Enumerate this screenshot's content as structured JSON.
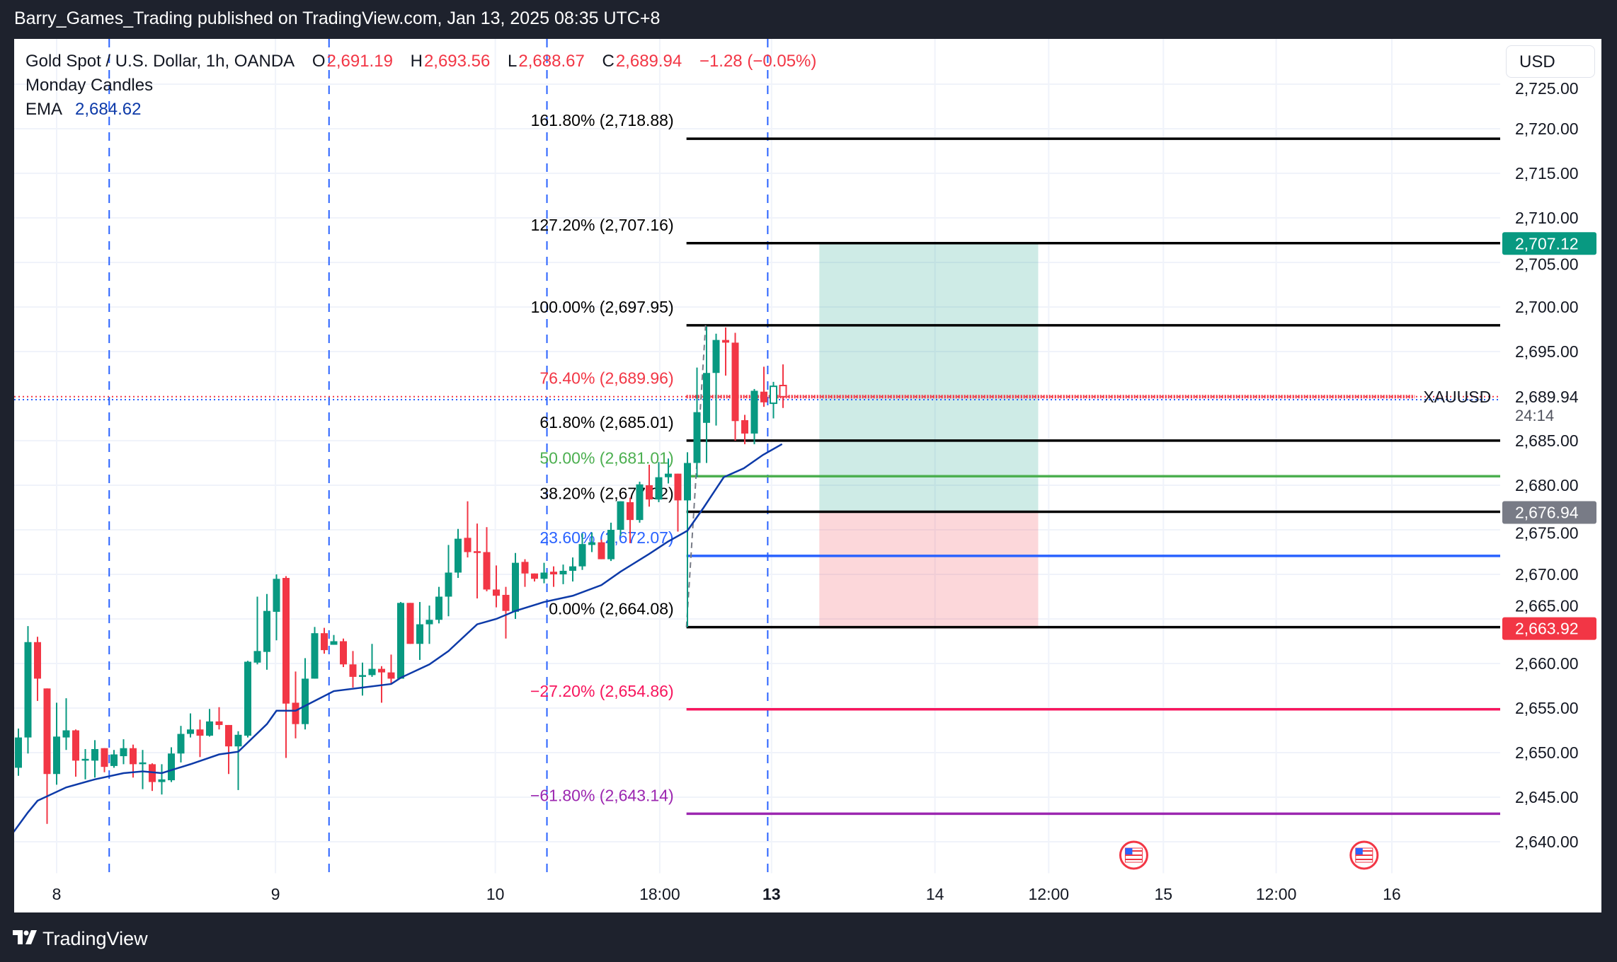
{
  "header": {
    "published": "Barry_Games_Trading published on TradingView.com, Jan 13, 2025 08:35 UTC+8"
  },
  "legend": {
    "symbol": "Gold Spot / U.S. Dollar, 1h, OANDA",
    "o_label": "O",
    "o": "2,691.19",
    "h_label": "H",
    "h": "2,693.56",
    "l_label": "L",
    "l": "2,688.67",
    "c_label": "C",
    "c": "2,689.94",
    "change": "−1.28 (−0.05%)",
    "indicator": "Monday Candles",
    "ema_label": "EMA",
    "ema_value": "2,684.62"
  },
  "currency_button": "USD",
  "footer": {
    "brand": "TradingView"
  },
  "colors": {
    "up": "#089981",
    "down": "#f23645",
    "ema": "#0d3aa8",
    "session": "#2962ff",
    "bg": "#1e222d"
  },
  "chart_data": {
    "type": "candlestick",
    "title": "Gold Spot / U.S. Dollar, 1h, OANDA",
    "ylim": [
      2636,
      2727
    ],
    "candles": [
      [
        2648.3,
        2652.7,
        2647.4,
        2651.7
      ],
      [
        2651.7,
        2664.2,
        2649.9,
        2662.4
      ],
      [
        2662.4,
        2663.0,
        2655.8,
        2658.3
      ],
      [
        2657.2,
        2657.2,
        2642.0,
        2647.6
      ],
      [
        2647.6,
        2655.6,
        2646.4,
        2651.8
      ],
      [
        2651.7,
        2656.1,
        2650.3,
        2652.5
      ],
      [
        2652.5,
        2652.6,
        2647.3,
        2649.1
      ],
      [
        2649.1,
        2650.4,
        2647.0,
        2649.3
      ],
      [
        2649.1,
        2651.4,
        2647.2,
        2650.4
      ],
      [
        2650.5,
        2650.5,
        2647.8,
        2648.4
      ],
      [
        2648.5,
        2650.3,
        2648.3,
        2649.8
      ],
      [
        2649.6,
        2651.5,
        2648.7,
        2650.5
      ],
      [
        2650.5,
        2650.9,
        2647.2,
        2648.7
      ],
      [
        2648.7,
        2650.3,
        2645.9,
        2648.9
      ],
      [
        2648.7,
        2648.8,
        2645.7,
        2646.7
      ],
      [
        2646.7,
        2648.7,
        2645.3,
        2647.0
      ],
      [
        2646.9,
        2650.6,
        2646.7,
        2649.9
      ],
      [
        2649.9,
        2653.0,
        2648.9,
        2652.1
      ],
      [
        2652.1,
        2654.4,
        2651.7,
        2652.6
      ],
      [
        2652.6,
        2653.7,
        2649.5,
        2651.9
      ],
      [
        2651.9,
        2654.9,
        2651.8,
        2653.5
      ],
      [
        2653.5,
        2655.1,
        2652.6,
        2653.1
      ],
      [
        2653.1,
        2653.1,
        2647.6,
        2650.7
      ],
      [
        2650.7,
        2652.4,
        2645.8,
        2652.0
      ],
      [
        2651.9,
        2660.3,
        2651.7,
        2660.2
      ],
      [
        2660.1,
        2667.5,
        2659.9,
        2661.4
      ],
      [
        2661.3,
        2667.8,
        2659.3,
        2665.9
      ],
      [
        2665.8,
        2670.0,
        2662.6,
        2669.5
      ],
      [
        2669.6,
        2669.8,
        2649.4,
        2655.5
      ],
      [
        2655.6,
        2659.1,
        2651.6,
        2653.2
      ],
      [
        2653.2,
        2660.6,
        2652.6,
        2658.3
      ],
      [
        2658.3,
        2664.1,
        2658.3,
        2663.4
      ],
      [
        2663.4,
        2664.0,
        2661.1,
        2661.5
      ],
      [
        2662.1,
        2663.2,
        2662.1,
        2662.5
      ],
      [
        2662.5,
        2662.8,
        2659.6,
        2659.9
      ],
      [
        2659.9,
        2661.4,
        2657.3,
        2658.5
      ],
      [
        2658.5,
        2660.1,
        2656.4,
        2658.7
      ],
      [
        2658.7,
        2662.2,
        2658.5,
        2659.4
      ],
      [
        2659.4,
        2659.7,
        2655.6,
        2659.0
      ],
      [
        2659.0,
        2661.0,
        2657.7,
        2658.3
      ],
      [
        2658.3,
        2666.9,
        2658.3,
        2666.8
      ],
      [
        2666.8,
        2666.8,
        2662.2,
        2662.2
      ],
      [
        2662.2,
        2666.9,
        2660.4,
        2664.4
      ],
      [
        2664.4,
        2666.5,
        2662.2,
        2664.9
      ],
      [
        2664.9,
        2668.6,
        2664.5,
        2667.5
      ],
      [
        2667.5,
        2673.3,
        2665.3,
        2670.2
      ],
      [
        2670.2,
        2675.1,
        2669.6,
        2674.0
      ],
      [
        2674.1,
        2678.2,
        2671.9,
        2672.5
      ],
      [
        2672.6,
        2675.7,
        2667.3,
        2672.4
      ],
      [
        2672.5,
        2675.3,
        2668.1,
        2668.3
      ],
      [
        2668.3,
        2671.0,
        2666.3,
        2667.6
      ],
      [
        2667.7,
        2668.6,
        2662.8,
        2665.9
      ],
      [
        2665.8,
        2672.4,
        2665.0,
        2671.3
      ],
      [
        2671.4,
        2671.7,
        2668.6,
        2670.1
      ],
      [
        2670.1,
        2670.1,
        2669.2,
        2669.5
      ],
      [
        2669.5,
        2671.3,
        2669.0,
        2670.2
      ],
      [
        2670.3,
        2670.9,
        2668.6,
        2670.0
      ],
      [
        2670.0,
        2671.1,
        2668.9,
        2670.4
      ],
      [
        2670.4,
        2671.9,
        2669.2,
        2670.9
      ],
      [
        2670.9,
        2674.6,
        2670.5,
        2673.4
      ],
      [
        2673.3,
        2674.7,
        2672.5,
        2673.6
      ],
      [
        2673.6,
        2673.9,
        2671.7,
        2671.7
      ],
      [
        2671.7,
        2675.8,
        2671.5,
        2675.0
      ],
      [
        2675.0,
        2678.2,
        2674.3,
        2678.2
      ],
      [
        2678.1,
        2678.6,
        2673.5,
        2676.1
      ],
      [
        2676.1,
        2680.4,
        2675.8,
        2680.1
      ],
      [
        2680.0,
        2682.3,
        2677.6,
        2678.4
      ],
      [
        2678.4,
        2682.6,
        2678.1,
        2680.9
      ],
      [
        2680.9,
        2683.0,
        2680.2,
        2681.3
      ],
      [
        2681.3,
        2681.3,
        2674.8,
        2678.3
      ],
      [
        2678.3,
        2683.7,
        2664.1,
        2682.5
      ],
      [
        2682.5,
        2693.2,
        2680.9,
        2688.2
      ],
      [
        2687.0,
        2697.8,
        2682.5,
        2692.6
      ],
      [
        2692.6,
        2697.0,
        2686.7,
        2696.3
      ],
      [
        2696.3,
        2697.7,
        2692.3,
        2696.0
      ],
      [
        2696.0,
        2697.1,
        2685.0,
        2687.2
      ],
      [
        2687.3,
        2687.9,
        2684.6,
        2685.8
      ],
      [
        2685.8,
        2690.8,
        2684.6,
        2690.6
      ],
      [
        2690.5,
        2693.3,
        2688.8,
        2689.3
      ],
      [
        2689.2,
        2691.6,
        2687.5,
        2691.1
      ],
      [
        2691.19,
        2693.56,
        2688.67,
        2689.94
      ]
    ],
    "hollow_from_index": 79,
    "ema": [
      [
        -0.5,
        2641.1
      ],
      [
        1,
        2643.3
      ],
      [
        2,
        2644.6
      ],
      [
        5,
        2646.1
      ],
      [
        8,
        2647.0
      ],
      [
        11,
        2647.7
      ],
      [
        13,
        2647.9
      ],
      [
        15,
        2647.7
      ],
      [
        18,
        2648.7
      ],
      [
        21,
        2649.8
      ],
      [
        23,
        2650.1
      ],
      [
        26,
        2653.2
      ],
      [
        27,
        2654.7
      ],
      [
        29,
        2654.7
      ],
      [
        31,
        2655.8
      ],
      [
        33,
        2656.9
      ],
      [
        36,
        2657.3
      ],
      [
        39,
        2657.7
      ],
      [
        40,
        2658.4
      ],
      [
        43,
        2659.9
      ],
      [
        45,
        2661.4
      ],
      [
        48,
        2664.4
      ],
      [
        50,
        2665.0
      ],
      [
        52,
        2665.9
      ],
      [
        55,
        2666.9
      ],
      [
        58,
        2667.6
      ],
      [
        61,
        2668.8
      ],
      [
        63,
        2670.3
      ],
      [
        66,
        2672.3
      ],
      [
        68,
        2673.7
      ],
      [
        70,
        2674.9
      ],
      [
        71.7,
        2677.5
      ],
      [
        73.8,
        2680.9
      ],
      [
        75.9,
        2681.9
      ],
      [
        77.9,
        2683.4
      ],
      [
        79.9,
        2684.62
      ]
    ],
    "fib_start_index": 69.9,
    "fib_trend": [
      [
        69.9,
        2664.08
      ],
      [
        71.9,
        2697.95
      ]
    ],
    "fib_levels": [
      {
        "label": "161.80% (2,718.88)",
        "price": 2718.88,
        "color": "#000000"
      },
      {
        "label": "127.20% (2,707.16)",
        "price": 2707.16,
        "color": "#000000"
      },
      {
        "label": "100.00% (2,697.95)",
        "price": 2697.95,
        "color": "#000000"
      },
      {
        "label": "76.40% (2,689.96)",
        "price": 2689.96,
        "color": "#f23645"
      },
      {
        "label": "61.80% (2,685.01)",
        "price": 2685.01,
        "color": "#000000"
      },
      {
        "label": "50.00% (2,681.01)",
        "price": 2681.01,
        "color": "#4caf50"
      },
      {
        "label": "38.20% (2,677.02)",
        "price": 2677.02,
        "color": "#000000"
      },
      {
        "label": "23.60% (2,672.07)",
        "price": 2672.07,
        "color": "#2962ff"
      },
      {
        "label": "0.00% (2,664.08)",
        "price": 2664.08,
        "color": "#000000"
      },
      {
        "label": "−27.20% (2,654.86)",
        "price": 2654.86,
        "color": "#f7155d"
      },
      {
        "label": "−61.80% (2,643.14)",
        "price": 2643.14,
        "color": "#9c27b0"
      }
    ],
    "position": {
      "type": "long",
      "start_index": 83.8,
      "end_index": 106.7,
      "target": 2707.12,
      "entry": 2676.94,
      "stop": 2663.92,
      "target_label": "2,707.12",
      "entry_label": "2,676.94",
      "stop_label": "2,663.92"
    },
    "symbol_line": {
      "label": "XAUUSD",
      "price": 2689.94,
      "end_index": 146.1
    },
    "last_price": {
      "value": 2689.94,
      "label": "2,689.94",
      "countdown": "24:14",
      "ema_dotted": 2689.6
    },
    "session_breaks": [
      9.5,
      32.5,
      55.3,
      78.4
    ],
    "event_flags": [
      116.7,
      140.8
    ],
    "y_ticks": [
      {
        "v": 2725,
        "label": "2,725.00"
      },
      {
        "v": 2720,
        "label": "2,720.00"
      },
      {
        "v": 2715,
        "label": "2,715.00"
      },
      {
        "v": 2710,
        "label": "2,710.00"
      },
      {
        "v": 2705,
        "label": "2,705.00"
      },
      {
        "v": 2700,
        "label": "2,700.00"
      },
      {
        "v": 2695,
        "label": "2,695.00"
      },
      {
        "v": 2685,
        "label": "2,685.00"
      },
      {
        "v": 2680,
        "label": "2,680.00"
      },
      {
        "v": 2675,
        "label": "2,675.00"
      },
      {
        "v": 2670,
        "label": "2,670.00"
      },
      {
        "v": 2665,
        "label": "2,665.00"
      },
      {
        "v": 2660,
        "label": "2,660.00"
      },
      {
        "v": 2655,
        "label": "2,655.00"
      },
      {
        "v": 2650,
        "label": "2,650.00"
      },
      {
        "v": 2645,
        "label": "2,645.00"
      },
      {
        "v": 2640,
        "label": "2,640.00"
      }
    ],
    "x_ticks": [
      {
        "i": 4,
        "label": "8"
      },
      {
        "i": 26.9,
        "label": "9"
      },
      {
        "i": 49.9,
        "label": "10"
      },
      {
        "i": 67.1,
        "label": "18:00"
      },
      {
        "i": 78.8,
        "label": "13",
        "bold": true
      },
      {
        "i": 95.9,
        "label": "14"
      },
      {
        "i": 107.8,
        "label": "12:00"
      },
      {
        "i": 119.8,
        "label": "15"
      },
      {
        "i": 131.6,
        "label": "12:00"
      },
      {
        "i": 143.7,
        "label": "16"
      }
    ]
  }
}
